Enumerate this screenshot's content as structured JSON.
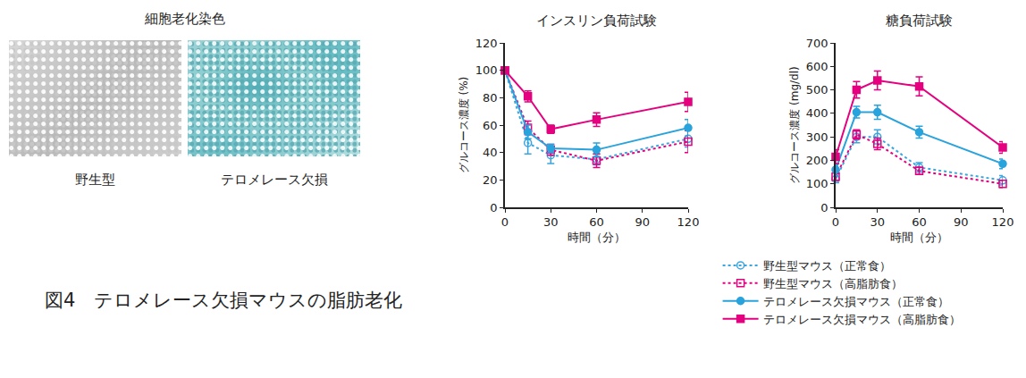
{
  "figure_title": "図4　テロメレース欠損マウスの脂肪老化",
  "staining": {
    "title": "細胞老化染色",
    "images": [
      {
        "label": "野生型"
      },
      {
        "label": "テロメレース欠損"
      }
    ]
  },
  "chart_data": [
    {
      "type": "line",
      "title": "インスリン負荷試験",
      "xlabel": "時間（分）",
      "ylabel": "グルコース濃度 (%)",
      "x": [
        0,
        15,
        30,
        60,
        120
      ],
      "xlim": [
        0,
        120
      ],
      "xticks": [
        0,
        30,
        60,
        90,
        120
      ],
      "ylim": [
        0,
        120
      ],
      "yticks": [
        0,
        20,
        40,
        60,
        80,
        100,
        120
      ],
      "grid": false,
      "legend": "bottom right",
      "series": [
        {
          "name": "野生型マウス（正常食）",
          "color": "#3aa6e0",
          "marker": "circle-open",
          "line_style": "dot",
          "values": [
            100,
            47,
            38,
            35,
            50
          ],
          "errors": [
            0,
            8,
            6,
            4,
            6
          ]
        },
        {
          "name": "野生型マウス（高脂肪食）",
          "color": "#e4007f",
          "marker": "square-open",
          "line_style": "dot",
          "values": [
            100,
            58,
            42,
            34,
            48
          ],
          "errors": [
            0,
            5,
            4,
            5,
            8
          ]
        },
        {
          "name": "テロメレース欠損マウス（正常食）",
          "color": "#29a3dc",
          "marker": "circle",
          "line_style": "solid",
          "values": [
            100,
            55,
            43,
            42,
            58
          ],
          "errors": [
            0,
            5,
            3,
            5,
            6
          ]
        },
        {
          "name": "テロメレース欠損マウス（高脂肪食）",
          "color": "#e4007f",
          "marker": "square",
          "line_style": "solid",
          "values": [
            100,
            81,
            57,
            64,
            77
          ],
          "errors": [
            0,
            4,
            3,
            5,
            7
          ]
        }
      ]
    },
    {
      "type": "line",
      "title": "糖負荷試験",
      "xlabel": "時間（分）",
      "ylabel": "グルコース濃度 (mg/dl)",
      "x": [
        0,
        15,
        30,
        60,
        120
      ],
      "xlim": [
        0,
        120
      ],
      "xticks": [
        0,
        30,
        60,
        90,
        120
      ],
      "ylim": [
        0,
        700
      ],
      "yticks": [
        0,
        100,
        200,
        300,
        400,
        500,
        600,
        700
      ],
      "grid": false,
      "series": [
        {
          "name": "野生型マウス（正常食）",
          "color": "#3aa6e0",
          "marker": "circle-open",
          "line_style": "dot",
          "values": [
            120,
            300,
            300,
            170,
            115
          ],
          "errors": [
            15,
            25,
            30,
            20,
            20
          ]
        },
        {
          "name": "野生型マウス（高脂肪食）",
          "color": "#e4007f",
          "marker": "square-open",
          "line_style": "dot",
          "values": [
            130,
            310,
            270,
            155,
            100
          ],
          "errors": [
            15,
            20,
            25,
            15,
            15
          ]
        },
        {
          "name": "テロメレース欠損マウス（正常食）",
          "color": "#29a3dc",
          "marker": "circle",
          "line_style": "solid",
          "values": [
            160,
            405,
            405,
            320,
            185
          ],
          "errors": [
            25,
            25,
            30,
            25,
            20
          ]
        },
        {
          "name": "テロメレース欠損マウス（高脂肪食）",
          "color": "#e4007f",
          "marker": "square",
          "line_style": "solid",
          "values": [
            215,
            500,
            540,
            515,
            255
          ],
          "errors": [
            30,
            35,
            40,
            40,
            25
          ]
        }
      ]
    }
  ]
}
